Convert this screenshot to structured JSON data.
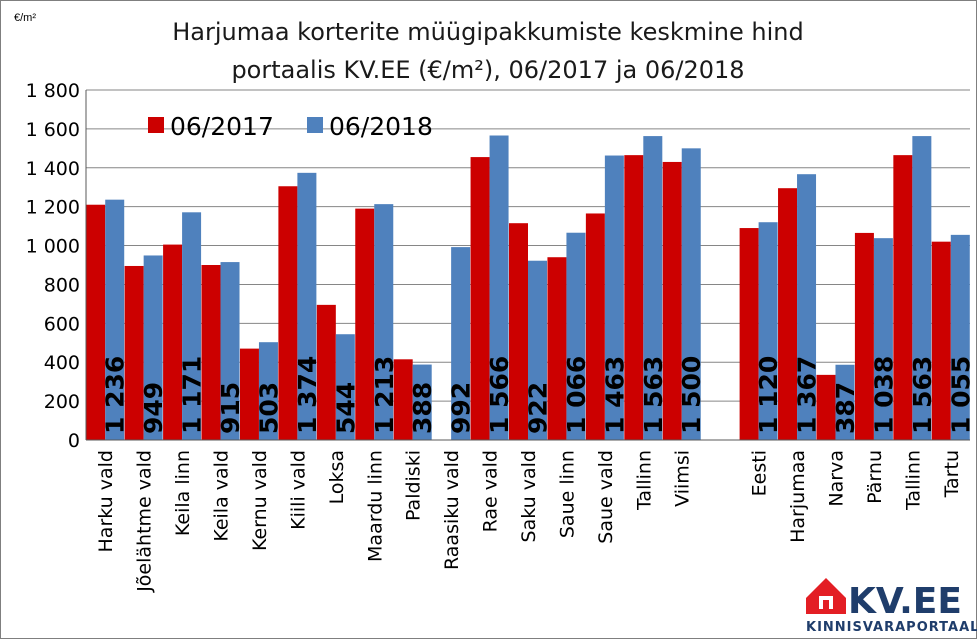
{
  "chart_data": {
    "type": "bar",
    "title_line1": "Harjumaa korterite müügipakkumiste keskmine hind",
    "title_line2": "portaalis KV.EE (€/m²), 06/2017 ja 06/2018",
    "unit_label": "€/m²",
    "ylim": [
      0,
      1800
    ],
    "y_ticks": [
      {
        "value": 0,
        "label": "0"
      },
      {
        "value": 200,
        "label": "200"
      },
      {
        "value": 400,
        "label": "400"
      },
      {
        "value": 600,
        "label": "600"
      },
      {
        "value": 800,
        "label": "800"
      },
      {
        "value": 1000,
        "label": "1 000"
      },
      {
        "value": 1200,
        "label": "1 200"
      },
      {
        "value": 1400,
        "label": "1 400"
      },
      {
        "value": 1600,
        "label": "1 600"
      },
      {
        "value": 1800,
        "label": "1 800"
      }
    ],
    "grid": "horizontal",
    "legend_position": "top-left",
    "categories": [
      "Harku vald",
      "Jõelähtme vald",
      "Keila linn",
      "Keila vald",
      "Kernu vald",
      "Kiili vald",
      "Loksa",
      "Maardu linn",
      "Paldiski",
      "Raasiku vald",
      "Rae vald",
      "Saku vald",
      "Saue linn",
      "Saue vald",
      "Tallinn",
      "Viimsi",
      "",
      "Eesti",
      "Harjumaa",
      "Narva",
      "Pärnu",
      "Tallinn",
      "Tartu"
    ],
    "series": [
      {
        "name": "06/2017",
        "color": "#cc0000",
        "values": [
          1210,
          895,
          1005,
          900,
          470,
          1305,
          695,
          1190,
          415,
          null,
          1455,
          1115,
          940,
          1165,
          1465,
          1430,
          null,
          1090,
          1295,
          335,
          1065,
          1465,
          1020
        ]
      },
      {
        "name": "06/2018",
        "color": "#4f81bd",
        "values": [
          1236,
          949,
          1171,
          915,
          503,
          1374,
          544,
          1213,
          388,
          992,
          1566,
          922,
          1066,
          1463,
          1563,
          1500,
          null,
          1120,
          1367,
          387,
          1038,
          1563,
          1055
        ],
        "data_labels": [
          "1 236",
          "949",
          "1 171",
          "915",
          "503",
          "1 374",
          "544",
          "1 213",
          "388",
          "992",
          "1 566",
          "922",
          "1 066",
          "1 463",
          "1 563",
          "1 500",
          "",
          "1 120",
          "1 367",
          "387",
          "1 038",
          "1 563",
          "1 055"
        ]
      }
    ]
  },
  "logo": {
    "text": "KV.EE",
    "subtext": "KINNISVARAPORTAAL",
    "brand_color": "#e31e24",
    "text_color": "#1f3d6b"
  }
}
